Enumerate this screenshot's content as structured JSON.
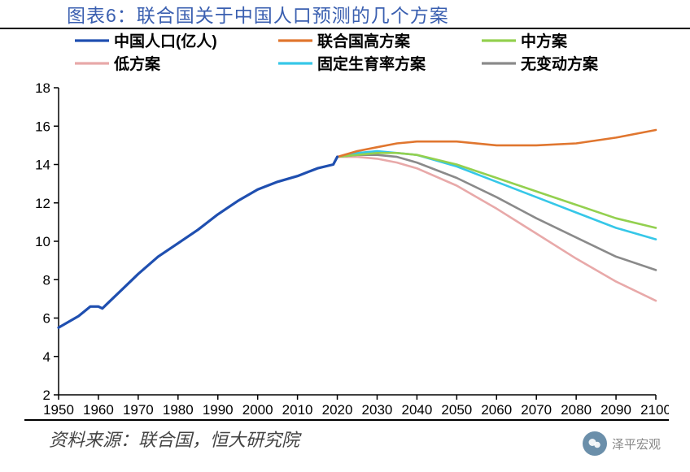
{
  "title": "图表6：联合国关于中国人口预测的几个方案",
  "source": "资料来源：联合国，恒大研究院",
  "watermark_label": "泽平宏观",
  "chart": {
    "type": "line",
    "background_color": "#ffffff",
    "axis_color": "#000000",
    "tick_fontsize": 17,
    "legend_fontsize": 19,
    "xlim": [
      1950,
      2100
    ],
    "ylim": [
      2,
      18
    ],
    "xtick_step": 10,
    "ytick_step": 2,
    "x_ticks": [
      1950,
      1960,
      1970,
      1980,
      1990,
      2000,
      2010,
      2020,
      2030,
      2040,
      2050,
      2060,
      2070,
      2080,
      2090,
      2100
    ],
    "y_ticks": [
      2,
      4,
      6,
      8,
      10,
      12,
      14,
      16,
      18
    ],
    "legend_rows": [
      [
        "series_hist",
        "series_high",
        "series_med"
      ],
      [
        "series_low",
        "series_const",
        "series_nochg"
      ]
    ],
    "series": {
      "series_hist": {
        "label": "中国人口(亿人)",
        "color": "#1f4fb0",
        "width": 3.2,
        "x": [
          1950,
          1955,
          1958,
          1960,
          1961,
          1963,
          1965,
          1970,
          1975,
          1980,
          1985,
          1990,
          1995,
          2000,
          2005,
          2010,
          2015,
          2019,
          2020
        ],
        "y": [
          5.5,
          6.1,
          6.6,
          6.6,
          6.5,
          6.9,
          7.3,
          8.3,
          9.2,
          9.9,
          10.6,
          11.4,
          12.1,
          12.7,
          13.1,
          13.4,
          13.8,
          14.0,
          14.4
        ]
      },
      "series_high": {
        "label": "联合国高方案",
        "color": "#e0762f",
        "width": 2.6,
        "x": [
          2020,
          2025,
          2030,
          2035,
          2040,
          2050,
          2060,
          2070,
          2080,
          2090,
          2100
        ],
        "y": [
          14.4,
          14.7,
          14.9,
          15.1,
          15.2,
          15.2,
          15.0,
          15.0,
          15.1,
          15.4,
          15.8
        ]
      },
      "series_med": {
        "label": "中方案",
        "color": "#93d04f",
        "width": 2.6,
        "x": [
          2020,
          2025,
          2030,
          2035,
          2040,
          2050,
          2060,
          2070,
          2080,
          2090,
          2100
        ],
        "y": [
          14.4,
          14.5,
          14.6,
          14.6,
          14.5,
          14.0,
          13.3,
          12.6,
          11.9,
          11.2,
          10.7
        ]
      },
      "series_low": {
        "label": "低方案",
        "color": "#e8a9a9",
        "width": 2.6,
        "x": [
          2020,
          2025,
          2030,
          2035,
          2040,
          2050,
          2060,
          2070,
          2080,
          2090,
          2100
        ],
        "y": [
          14.4,
          14.4,
          14.3,
          14.1,
          13.8,
          12.9,
          11.7,
          10.4,
          9.1,
          7.9,
          6.9
        ]
      },
      "series_const": {
        "label": "固定生育率方案",
        "color": "#36c7e8",
        "width": 2.6,
        "x": [
          2020,
          2025,
          2030,
          2035,
          2040,
          2050,
          2060,
          2070,
          2080,
          2090,
          2100
        ],
        "y": [
          14.4,
          14.6,
          14.7,
          14.6,
          14.5,
          13.9,
          13.1,
          12.3,
          11.5,
          10.7,
          10.1
        ]
      },
      "series_nochg": {
        "label": "无变动方案",
        "color": "#8a8a8a",
        "width": 2.6,
        "x": [
          2020,
          2025,
          2030,
          2035,
          2040,
          2050,
          2060,
          2070,
          2080,
          2090,
          2100
        ],
        "y": [
          14.4,
          14.5,
          14.5,
          14.4,
          14.1,
          13.3,
          12.3,
          11.2,
          10.2,
          9.2,
          8.5
        ]
      }
    }
  }
}
